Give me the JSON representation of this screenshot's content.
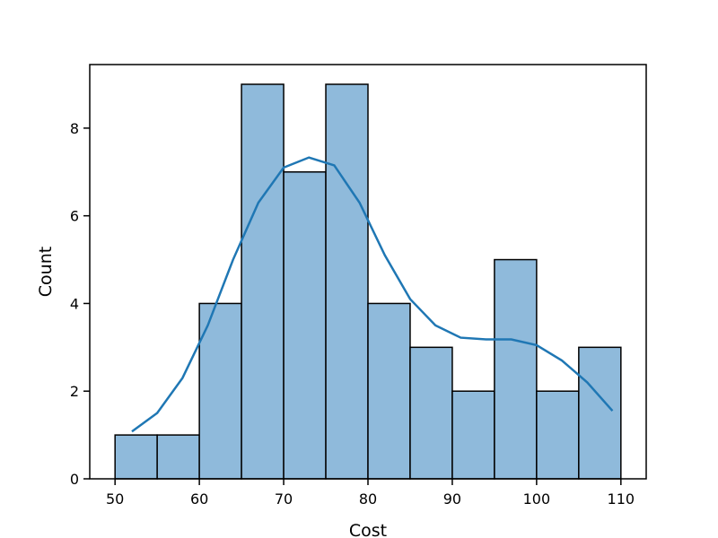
{
  "chart_data": {
    "type": "histogram",
    "x_label": "Cost",
    "y_label": "Count",
    "bins": [
      50,
      55,
      60,
      65,
      70,
      75,
      80,
      85,
      90,
      95,
      100,
      105,
      110
    ],
    "values": [
      1,
      1,
      4,
      9,
      7,
      9,
      4,
      3,
      2,
      5,
      2,
      3
    ],
    "color": "#8fbadb",
    "edge_color": "#000000",
    "kde": {
      "color": "#1f77b4",
      "x": [
        52,
        55,
        58,
        61,
        64,
        67,
        70,
        73,
        76,
        79,
        82,
        85,
        88,
        91,
        94,
        97,
        100,
        103,
        106,
        109
      ],
      "y": [
        1.08,
        1.5,
        2.3,
        3.5,
        5.0,
        6.3,
        7.1,
        7.33,
        7.15,
        6.3,
        5.1,
        4.1,
        3.5,
        3.22,
        3.18,
        3.18,
        3.05,
        2.7,
        2.2,
        1.55
      ]
    },
    "xlim": [
      47,
      113
    ],
    "ylim": [
      0,
      9.45
    ],
    "xticks": [
      50,
      60,
      70,
      80,
      90,
      100,
      110
    ],
    "yticks": [
      0,
      2,
      4,
      6,
      8
    ],
    "grid": false
  }
}
